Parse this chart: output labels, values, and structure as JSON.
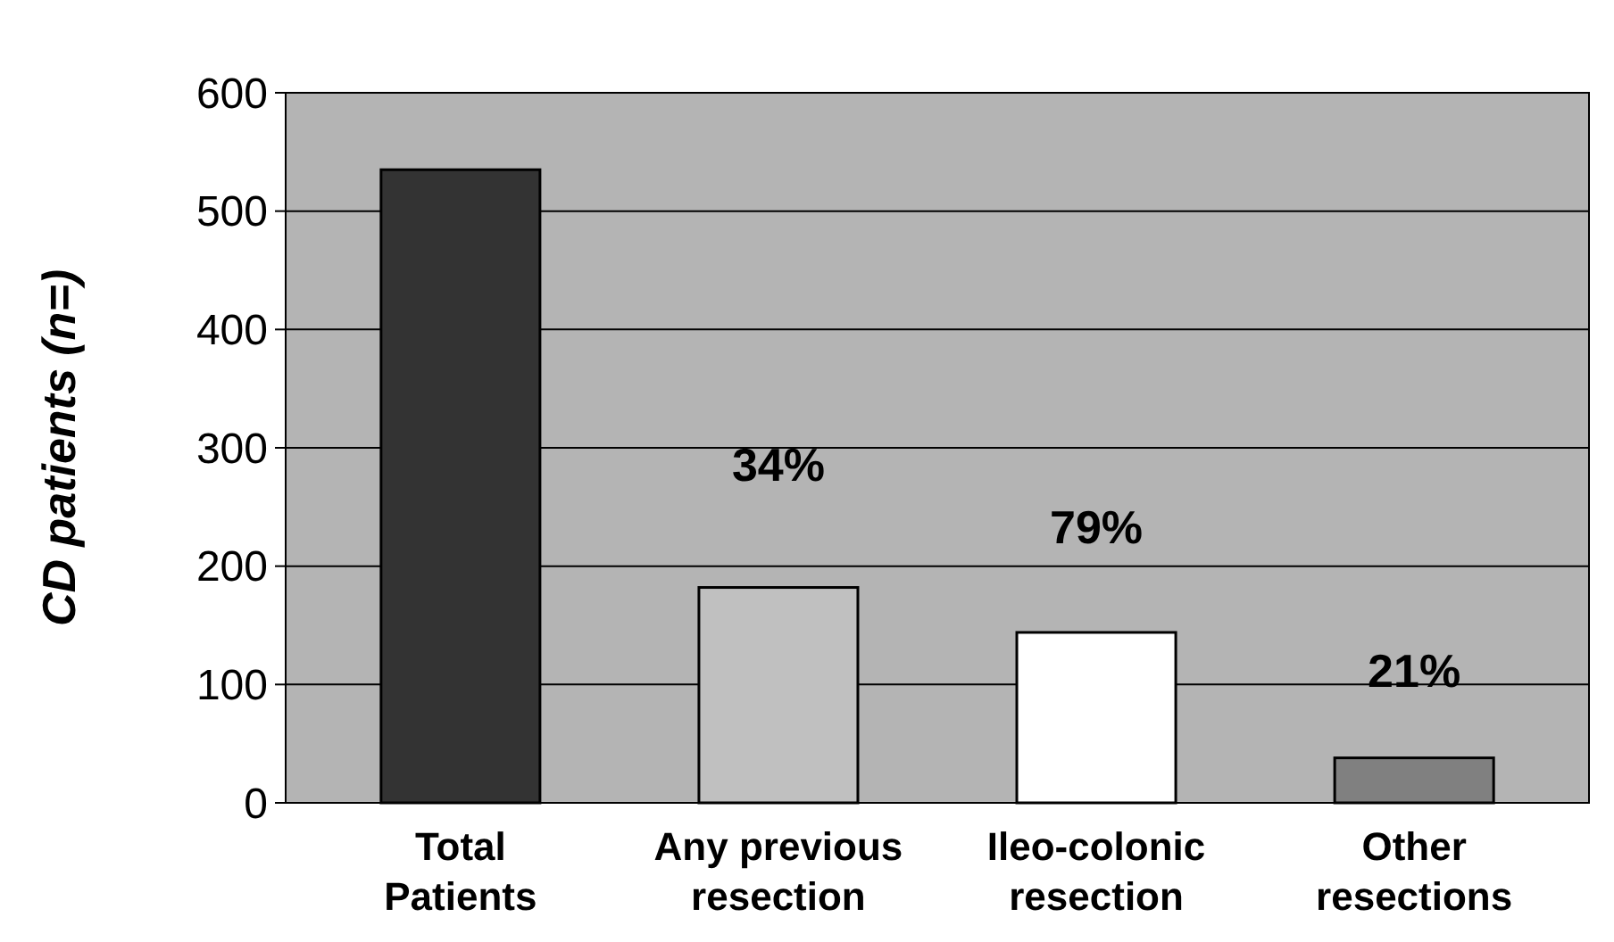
{
  "chart_data": {
    "type": "bar",
    "ylabel": "CD patients (n=)",
    "categories": [
      "Total Patients",
      "Any previous resection",
      "Ileo-colonic resection",
      "Other resections"
    ],
    "values": [
      535,
      182,
      144,
      38
    ],
    "colors": [
      "#333333",
      "#c0c0c0",
      "#ffffff",
      "#808080"
    ],
    "annotations": [
      "34%",
      "79%",
      "21%"
    ],
    "ylim": [
      0,
      600
    ],
    "yticks": [
      0,
      100,
      200,
      300,
      400,
      500,
      600
    ],
    "grid": "y"
  }
}
